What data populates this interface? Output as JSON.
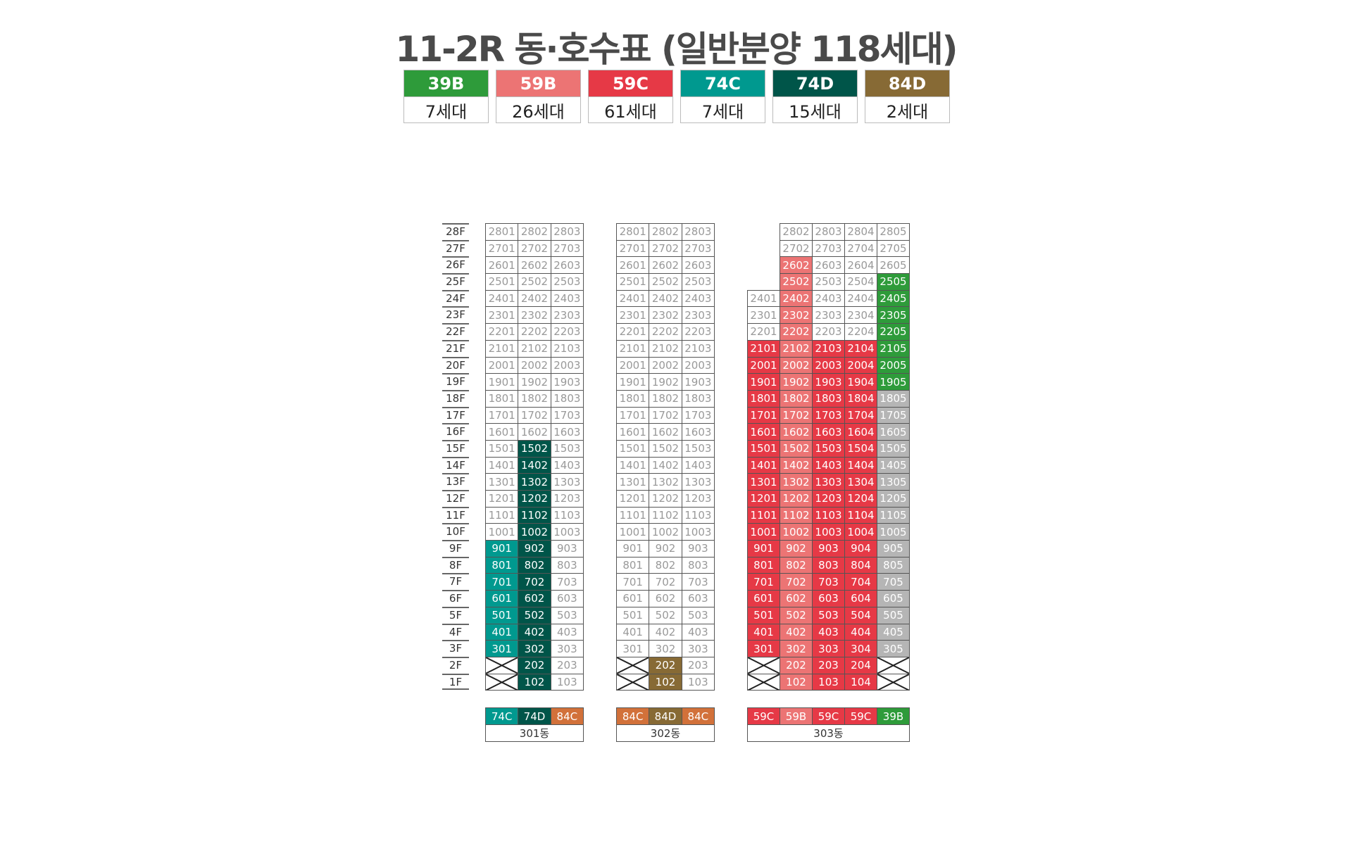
{
  "title": "11-2R 동·호수표 (일반분양 118세대)",
  "colors": {
    "39B": "#2e9b3a",
    "59B": "#ec7474",
    "59C": "#e63946",
    "74C": "#00998f",
    "74D": "#005549",
    "84D": "#876a35",
    "84C": "#d2713a",
    "gray": "#b5b5b5"
  },
  "legend": [
    {
      "type": "39B",
      "count": "7세대"
    },
    {
      "type": "59B",
      "count": "26세대"
    },
    {
      "type": "59C",
      "count": "61세대"
    },
    {
      "type": "74C",
      "count": "7세대"
    },
    {
      "type": "74D",
      "count": "15세대"
    },
    {
      "type": "84D",
      "count": "2세대"
    }
  ],
  "floors": [
    "28F",
    "27F",
    "26F",
    "25F",
    "24F",
    "23F",
    "22F",
    "21F",
    "20F",
    "19F",
    "18F",
    "17F",
    "16F",
    "15F",
    "14F",
    "13F",
    "12F",
    "11F",
    "10F",
    "9F",
    "8F",
    "7F",
    "6F",
    "5F",
    "4F",
    "3F",
    "2F",
    "1F"
  ],
  "buildings": [
    {
      "name": "301동",
      "types": [
        "74C",
        "74D",
        "84C"
      ],
      "rows": [
        [
          "2801",
          "2802",
          "2803"
        ],
        [
          "2701",
          "2702",
          "2703"
        ],
        [
          "2601",
          "2602",
          "2603"
        ],
        [
          "2501",
          "2502",
          "2503"
        ],
        [
          "2401",
          "2402",
          "2403"
        ],
        [
          "2301",
          "2302",
          "2303"
        ],
        [
          "2201",
          "2202",
          "2203"
        ],
        [
          "2101",
          "2102",
          "2103"
        ],
        [
          "2001",
          "2002",
          "2003"
        ],
        [
          "1901",
          "1902",
          "1903"
        ],
        [
          "1801",
          "1802",
          "1803"
        ],
        [
          "1701",
          "1702",
          "1703"
        ],
        [
          "1601",
          "1602",
          "1603"
        ],
        [
          "1501",
          [
            "1502",
            "74D"
          ],
          "1503"
        ],
        [
          "1401",
          [
            "1402",
            "74D"
          ],
          "1403"
        ],
        [
          "1301",
          [
            "1302",
            "74D"
          ],
          "1303"
        ],
        [
          "1201",
          [
            "1202",
            "74D"
          ],
          "1203"
        ],
        [
          "1101",
          [
            "1102",
            "74D"
          ],
          "1103"
        ],
        [
          "1001",
          [
            "1002",
            "74D"
          ],
          "1003"
        ],
        [
          [
            "901",
            "74C"
          ],
          [
            "902",
            "74D"
          ],
          "903"
        ],
        [
          [
            "801",
            "74C"
          ],
          [
            "802",
            "74D"
          ],
          "803"
        ],
        [
          [
            "701",
            "74C"
          ],
          [
            "702",
            "74D"
          ],
          "703"
        ],
        [
          [
            "601",
            "74C"
          ],
          [
            "602",
            "74D"
          ],
          "603"
        ],
        [
          [
            "501",
            "74C"
          ],
          [
            "502",
            "74D"
          ],
          "503"
        ],
        [
          [
            "401",
            "74C"
          ],
          [
            "402",
            "74D"
          ],
          "403"
        ],
        [
          [
            "301",
            "74C"
          ],
          [
            "302",
            "74D"
          ],
          "303"
        ],
        [
          "x",
          [
            "202",
            "74D"
          ],
          "203"
        ],
        [
          "x",
          [
            "102",
            "74D"
          ],
          "103"
        ]
      ]
    },
    {
      "name": "302동",
      "types": [
        "84C",
        "84D",
        "84C"
      ],
      "rows": [
        [
          "2801",
          "2802",
          "2803"
        ],
        [
          "2701",
          "2702",
          "2703"
        ],
        [
          "2601",
          "2602",
          "2603"
        ],
        [
          "2501",
          "2502",
          "2503"
        ],
        [
          "2401",
          "2402",
          "2403"
        ],
        [
          "2301",
          "2302",
          "2303"
        ],
        [
          "2201",
          "2202",
          "2203"
        ],
        [
          "2101",
          "2102",
          "2103"
        ],
        [
          "2001",
          "2002",
          "2003"
        ],
        [
          "1901",
          "1902",
          "1903"
        ],
        [
          "1801",
          "1802",
          "1803"
        ],
        [
          "1701",
          "1702",
          "1703"
        ],
        [
          "1601",
          "1602",
          "1603"
        ],
        [
          "1501",
          "1502",
          "1503"
        ],
        [
          "1401",
          "1402",
          "1403"
        ],
        [
          "1301",
          "1302",
          "1303"
        ],
        [
          "1201",
          "1202",
          "1203"
        ],
        [
          "1101",
          "1102",
          "1103"
        ],
        [
          "1001",
          "1002",
          "1003"
        ],
        [
          "901",
          "902",
          "903"
        ],
        [
          "801",
          "802",
          "803"
        ],
        [
          "701",
          "702",
          "703"
        ],
        [
          "601",
          "602",
          "603"
        ],
        [
          "501",
          "502",
          "503"
        ],
        [
          "401",
          "402",
          "403"
        ],
        [
          "301",
          "302",
          "303"
        ],
        [
          "x",
          [
            "202",
            "84D"
          ],
          "203"
        ],
        [
          "x",
          [
            "102",
            "84D"
          ],
          "103"
        ]
      ]
    },
    {
      "name": "303동",
      "types": [
        "59C",
        "59B",
        "59C",
        "59C",
        "39B"
      ],
      "rows": [
        [
          null,
          "2802",
          "2803",
          "2804",
          "2805"
        ],
        [
          null,
          "2702",
          "2703",
          "2704",
          "2705"
        ],
        [
          null,
          [
            "2602",
            "59B"
          ],
          "2603",
          "2604",
          "2605"
        ],
        [
          null,
          [
            "2502",
            "59B"
          ],
          "2503",
          "2504",
          [
            "2505",
            "39B"
          ]
        ],
        [
          "2401",
          [
            "2402",
            "59B"
          ],
          "2403",
          "2404",
          [
            "2405",
            "39B"
          ]
        ],
        [
          "2301",
          [
            "2302",
            "59B"
          ],
          "2303",
          "2304",
          [
            "2305",
            "39B"
          ]
        ],
        [
          "2201",
          [
            "2202",
            "59B"
          ],
          "2203",
          "2204",
          [
            "2205",
            "39B"
          ]
        ],
        [
          [
            "2101",
            "59C"
          ],
          [
            "2102",
            "59B"
          ],
          [
            "2103",
            "59C"
          ],
          [
            "2104",
            "59C"
          ],
          [
            "2105",
            "39B"
          ]
        ],
        [
          [
            "2001",
            "59C"
          ],
          [
            "2002",
            "59B"
          ],
          [
            "2003",
            "59C"
          ],
          [
            "2004",
            "59C"
          ],
          [
            "2005",
            "39B"
          ]
        ],
        [
          [
            "1901",
            "59C"
          ],
          [
            "1902",
            "59B"
          ],
          [
            "1903",
            "59C"
          ],
          [
            "1904",
            "59C"
          ],
          [
            "1905",
            "39B"
          ]
        ],
        [
          [
            "1801",
            "59C"
          ],
          [
            "1802",
            "59B"
          ],
          [
            "1803",
            "59C"
          ],
          [
            "1804",
            "59C"
          ],
          [
            "1805",
            "gray"
          ]
        ],
        [
          [
            "1701",
            "59C"
          ],
          [
            "1702",
            "59B"
          ],
          [
            "1703",
            "59C"
          ],
          [
            "1704",
            "59C"
          ],
          [
            "1705",
            "gray"
          ]
        ],
        [
          [
            "1601",
            "59C"
          ],
          [
            "1602",
            "59B"
          ],
          [
            "1603",
            "59C"
          ],
          [
            "1604",
            "59C"
          ],
          [
            "1605",
            "gray"
          ]
        ],
        [
          [
            "1501",
            "59C"
          ],
          [
            "1502",
            "59B"
          ],
          [
            "1503",
            "59C"
          ],
          [
            "1504",
            "59C"
          ],
          [
            "1505",
            "gray"
          ]
        ],
        [
          [
            "1401",
            "59C"
          ],
          [
            "1402",
            "59B"
          ],
          [
            "1403",
            "59C"
          ],
          [
            "1404",
            "59C"
          ],
          [
            "1405",
            "gray"
          ]
        ],
        [
          [
            "1301",
            "59C"
          ],
          [
            "1302",
            "59B"
          ],
          [
            "1303",
            "59C"
          ],
          [
            "1304",
            "59C"
          ],
          [
            "1305",
            "gray"
          ]
        ],
        [
          [
            "1201",
            "59C"
          ],
          [
            "1202",
            "59B"
          ],
          [
            "1203",
            "59C"
          ],
          [
            "1204",
            "59C"
          ],
          [
            "1205",
            "gray"
          ]
        ],
        [
          [
            "1101",
            "59C"
          ],
          [
            "1102",
            "59B"
          ],
          [
            "1103",
            "59C"
          ],
          [
            "1104",
            "59C"
          ],
          [
            "1105",
            "gray"
          ]
        ],
        [
          [
            "1001",
            "59C"
          ],
          [
            "1002",
            "59B"
          ],
          [
            "1003",
            "59C"
          ],
          [
            "1004",
            "59C"
          ],
          [
            "1005",
            "gray"
          ]
        ],
        [
          [
            "901",
            "59C"
          ],
          [
            "902",
            "59B"
          ],
          [
            "903",
            "59C"
          ],
          [
            "904",
            "59C"
          ],
          [
            "905",
            "gray"
          ]
        ],
        [
          [
            "801",
            "59C"
          ],
          [
            "802",
            "59B"
          ],
          [
            "803",
            "59C"
          ],
          [
            "804",
            "59C"
          ],
          [
            "805",
            "gray"
          ]
        ],
        [
          [
            "701",
            "59C"
          ],
          [
            "702",
            "59B"
          ],
          [
            "703",
            "59C"
          ],
          [
            "704",
            "59C"
          ],
          [
            "705",
            "gray"
          ]
        ],
        [
          [
            "601",
            "59C"
          ],
          [
            "602",
            "59B"
          ],
          [
            "603",
            "59C"
          ],
          [
            "604",
            "59C"
          ],
          [
            "605",
            "gray"
          ]
        ],
        [
          [
            "501",
            "59C"
          ],
          [
            "502",
            "59B"
          ],
          [
            "503",
            "59C"
          ],
          [
            "504",
            "59C"
          ],
          [
            "505",
            "gray"
          ]
        ],
        [
          [
            "401",
            "59C"
          ],
          [
            "402",
            "59B"
          ],
          [
            "403",
            "59C"
          ],
          [
            "404",
            "59C"
          ],
          [
            "405",
            "gray"
          ]
        ],
        [
          [
            "301",
            "59C"
          ],
          [
            "302",
            "59B"
          ],
          [
            "303",
            "59C"
          ],
          [
            "304",
            "59C"
          ],
          [
            "305",
            "gray"
          ]
        ],
        [
          "x",
          [
            "202",
            "59B"
          ],
          [
            "203",
            "59C"
          ],
          [
            "204",
            "59C"
          ],
          "x"
        ],
        [
          "x",
          [
            "102",
            "59B"
          ],
          [
            "103",
            "59C"
          ],
          [
            "104",
            "59C"
          ],
          "x"
        ]
      ]
    }
  ]
}
